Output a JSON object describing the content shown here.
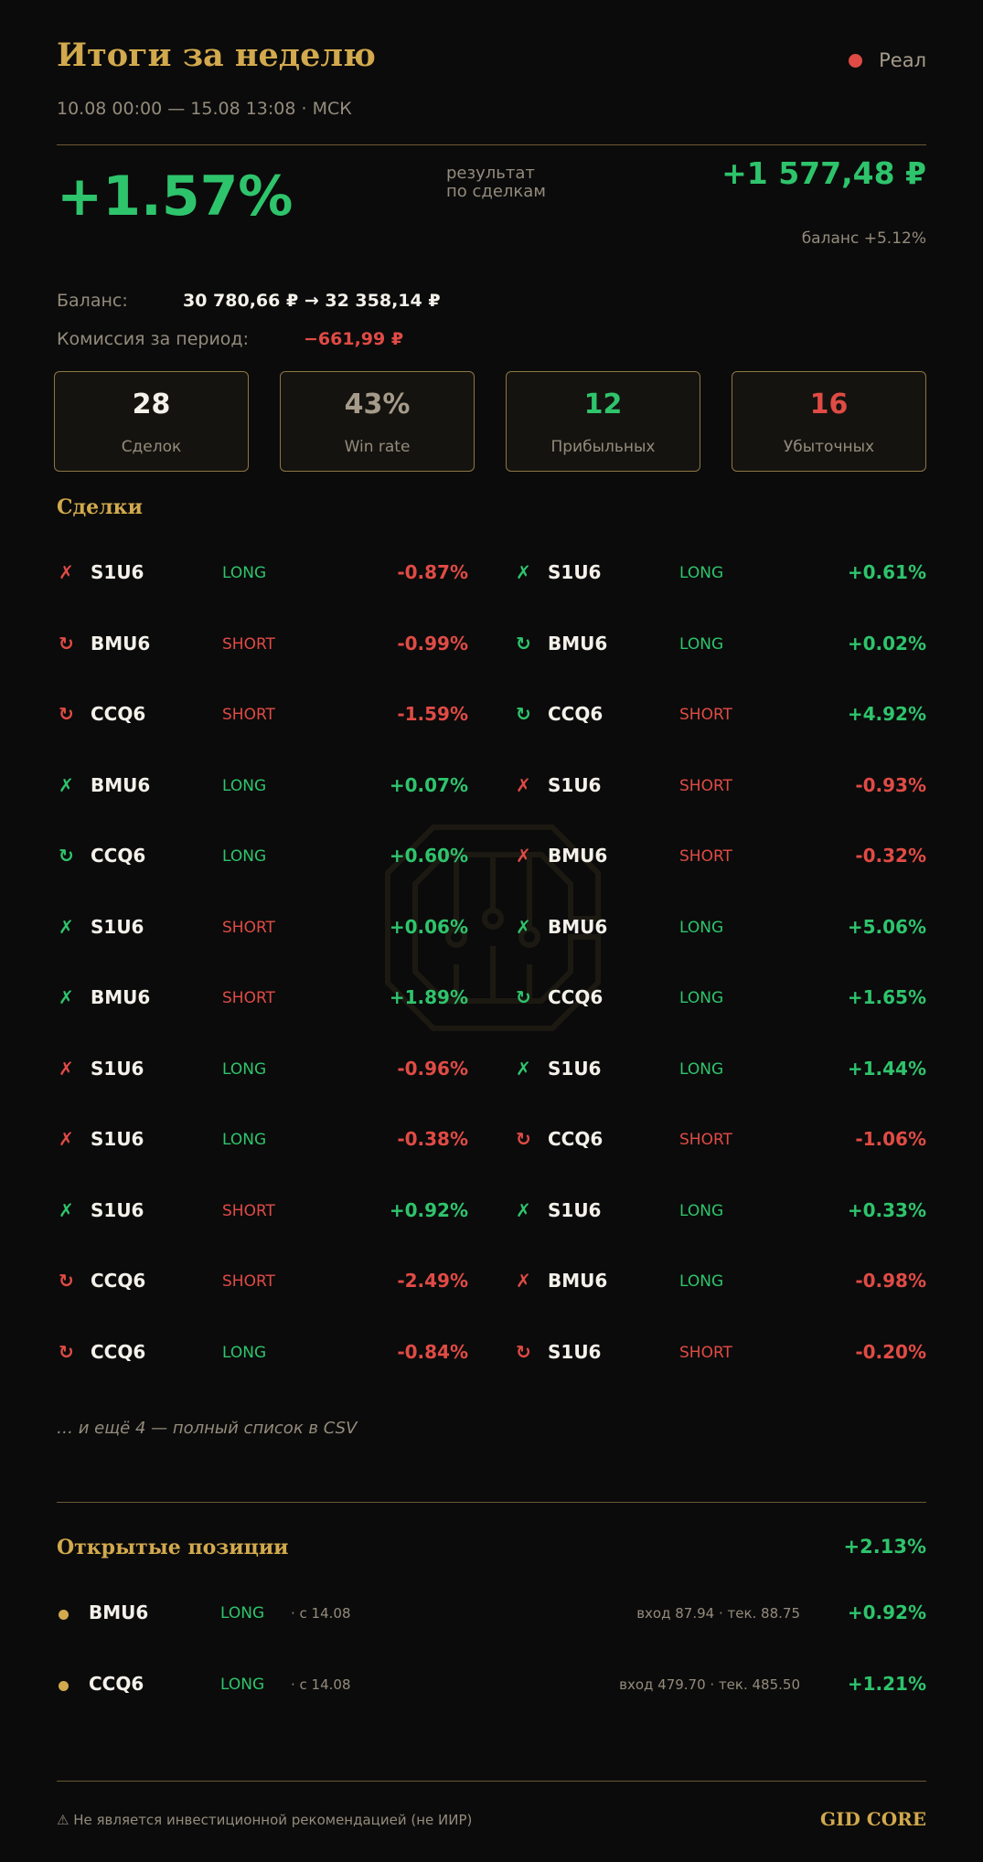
{
  "header": {
    "title": "Итоги за неделю",
    "mode_label": "Реал",
    "mode_color": "#e04b45",
    "period": "10.08 00:00 — 15.08 13:08 · МСК"
  },
  "summary": {
    "result_pct": "+1.57%",
    "result_label_line1": "результат",
    "result_label_line2": "по сделкам",
    "result_amount": "+1 577,48 ₽",
    "balance_change": "баланс +5.12%",
    "balance_label": "Баланс:",
    "balance_value": "30 780,66 ₽ → 32 358,14 ₽",
    "fee_label": "Комиссия за период:",
    "fee_value": "−661,99 ₽"
  },
  "stats": [
    {
      "value": "28",
      "label": "Сделок",
      "color": "#f4f1ea"
    },
    {
      "value": "43%",
      "label": "Win rate",
      "color": "#a59b8a"
    },
    {
      "value": "12",
      "label": "Прибыльных",
      "color": "#2ec46c"
    },
    {
      "value": "16",
      "label": "Убыточных",
      "color": "#e04b45"
    }
  ],
  "trades_title": "Сделки",
  "trades": [
    {
      "icon": "✗",
      "icon_name": "cross-icon",
      "ticker": "S1U6",
      "dir": "LONG",
      "pct": "-0.87%"
    },
    {
      "icon": "✗",
      "icon_name": "cross-icon",
      "ticker": "S1U6",
      "dir": "LONG",
      "pct": "+0.61%"
    },
    {
      "icon": "↻",
      "icon_name": "repeat-icon",
      "ticker": "BMU6",
      "dir": "SHORT",
      "pct": "-0.99%"
    },
    {
      "icon": "↻",
      "icon_name": "repeat-icon",
      "ticker": "BMU6",
      "dir": "LONG",
      "pct": "+0.02%"
    },
    {
      "icon": "↻",
      "icon_name": "repeat-icon",
      "ticker": "CCQ6",
      "dir": "SHORT",
      "pct": "-1.59%"
    },
    {
      "icon": "↻",
      "icon_name": "repeat-icon",
      "ticker": "CCQ6",
      "dir": "SHORT",
      "pct": "+4.92%"
    },
    {
      "icon": "✗",
      "icon_name": "cross-icon",
      "ticker": "BMU6",
      "dir": "LONG",
      "pct": "+0.07%"
    },
    {
      "icon": "✗",
      "icon_name": "cross-icon",
      "ticker": "S1U6",
      "dir": "SHORT",
      "pct": "-0.93%"
    },
    {
      "icon": "↻",
      "icon_name": "repeat-icon",
      "ticker": "CCQ6",
      "dir": "LONG",
      "pct": "+0.60%"
    },
    {
      "icon": "✗",
      "icon_name": "cross-icon",
      "ticker": "BMU6",
      "dir": "SHORT",
      "pct": "-0.32%"
    },
    {
      "icon": "✗",
      "icon_name": "cross-icon",
      "ticker": "S1U6",
      "dir": "SHORT",
      "pct": "+0.06%"
    },
    {
      "icon": "✗",
      "icon_name": "cross-icon",
      "ticker": "BMU6",
      "dir": "LONG",
      "pct": "+5.06%"
    },
    {
      "icon": "✗",
      "icon_name": "cross-icon",
      "ticker": "BMU6",
      "dir": "SHORT",
      "pct": "+1.89%"
    },
    {
      "icon": "↻",
      "icon_name": "repeat-icon",
      "ticker": "CCQ6",
      "dir": "LONG",
      "pct": "+1.65%"
    },
    {
      "icon": "✗",
      "icon_name": "cross-icon",
      "ticker": "S1U6",
      "dir": "LONG",
      "pct": "-0.96%"
    },
    {
      "icon": "✗",
      "icon_name": "cross-icon",
      "ticker": "S1U6",
      "dir": "LONG",
      "pct": "+1.44%"
    },
    {
      "icon": "✗",
      "icon_name": "cross-icon",
      "ticker": "S1U6",
      "dir": "LONG",
      "pct": "-0.38%"
    },
    {
      "icon": "↻",
      "icon_name": "repeat-icon",
      "ticker": "CCQ6",
      "dir": "SHORT",
      "pct": "-1.06%"
    },
    {
      "icon": "✗",
      "icon_name": "cross-icon",
      "ticker": "S1U6",
      "dir": "SHORT",
      "pct": "+0.92%"
    },
    {
      "icon": "✗",
      "icon_name": "cross-icon",
      "ticker": "S1U6",
      "dir": "LONG",
      "pct": "+0.33%"
    },
    {
      "icon": "↻",
      "icon_name": "repeat-icon",
      "ticker": "CCQ6",
      "dir": "SHORT",
      "pct": "-2.49%"
    },
    {
      "icon": "✗",
      "icon_name": "cross-icon",
      "ticker": "BMU6",
      "dir": "LONG",
      "pct": "-0.98%"
    },
    {
      "icon": "↻",
      "icon_name": "repeat-icon",
      "ticker": "CCQ6",
      "dir": "LONG",
      "pct": "-0.84%"
    },
    {
      "icon": "↻",
      "icon_name": "repeat-icon",
      "ticker": "S1U6",
      "dir": "SHORT",
      "pct": "-0.20%"
    }
  ],
  "more_text": "… и ещё 4 — полный список в CSV",
  "positions": {
    "title": "Открытые позиции",
    "total": "+2.13%",
    "items": [
      {
        "ticker": "BMU6",
        "dir": "LONG",
        "since": "· с 14.08",
        "price": "вход 87.94 · тек. 88.75",
        "pct": "+0.92%"
      },
      {
        "ticker": "CCQ6",
        "dir": "LONG",
        "since": "· с 14.08",
        "price": "вход 479.70 · тек. 485.50",
        "pct": "+1.21%"
      }
    ]
  },
  "footer": {
    "disclaimer": "⚠ Не является инвестиционной рекомендацией (не ИИР)",
    "brand": "GID CORE"
  },
  "colors": {
    "accent": "#d2a94d",
    "positive": "#2ec46c",
    "negative": "#e04b45",
    "muted": "#948b7c"
  }
}
